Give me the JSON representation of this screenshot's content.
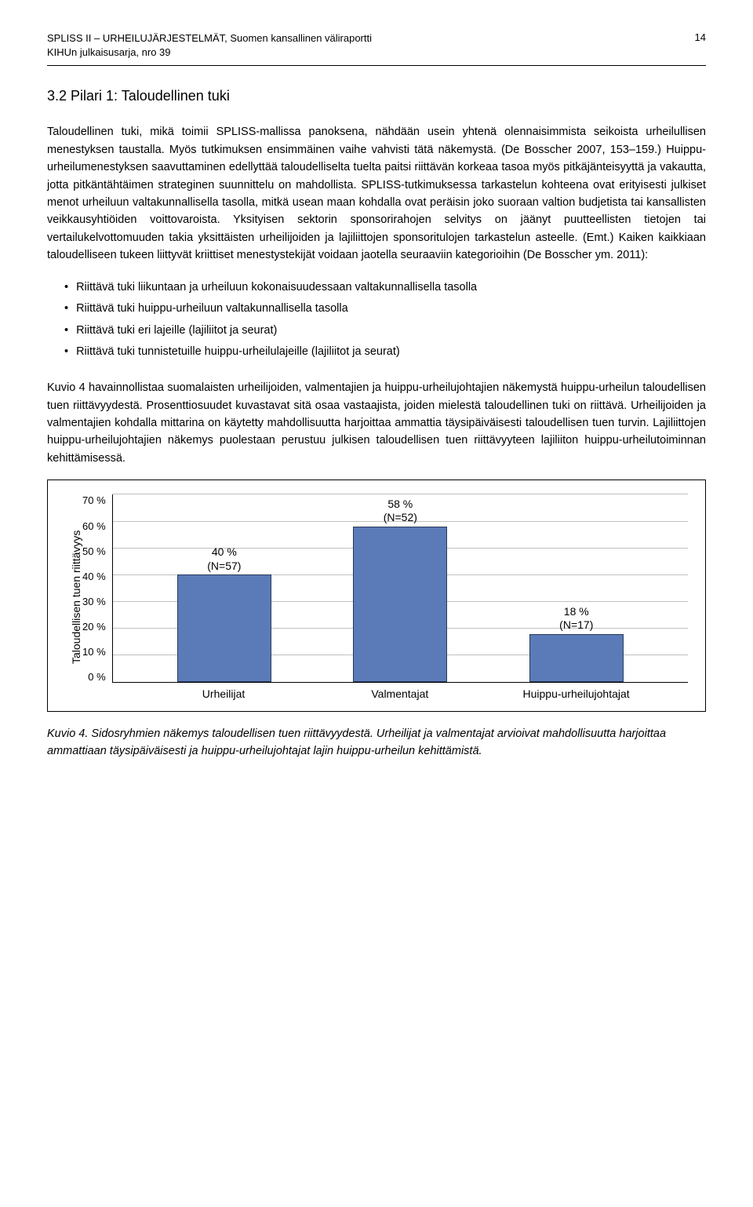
{
  "header": {
    "line1": "SPLISS II – URHEILUJÄRJESTELMÄT, Suomen kansallinen väliraportti",
    "line2": "KIHUn julkaisusarja, nro 39",
    "page": "14"
  },
  "heading": "3.2 Pilari 1: Taloudellinen tuki",
  "para1": "Taloudellinen tuki, mikä toimii SPLISS-mallissa panoksena, nähdään usein yhtenä olennaisimmista seikoista urheilullisen menestyksen taustalla. Myös tutkimuksen ensimmäinen vaihe vahvisti tätä näkemystä. (De Bosscher 2007, 153–159.) Huippu-urheilumenestyksen saavuttaminen edellyttää taloudelliselta tuelta paitsi riittävän korkeaa tasoa myös pitkäjänteisyyttä ja vakautta, jotta pitkäntähtäimen strateginen suunnittelu on mahdollista. SPLISS-tutkimuksessa tarkastelun kohteena ovat erityisesti julkiset menot urheiluun valtakunnallisella tasolla, mitkä usean maan kohdalla ovat peräisin joko suoraan valtion budjetista tai kansallisten veikkausyhtiöiden voittovaroista. Yksityisen sektorin sponsorirahojen selvitys on jäänyt puutteellisten tietojen tai vertailukelvottomuuden takia yksittäisten urheilijoiden ja lajiliittojen sponsoritulojen tarkastelun asteelle. (Emt.) Kaiken kaikkiaan taloudelliseen tukeen liittyvät kriittiset menestystekijät voidaan jaotella seuraaviin kategorioihin (De Bosscher ym. 2011):",
  "bullets": {
    "b1": "Riittävä tuki liikuntaan ja urheiluun kokonaisuudessaan valtakunnallisella tasolla",
    "b2": "Riittävä tuki huippu-urheiluun valtakunnallisella tasolla",
    "b3": "Riittävä tuki eri lajeille (lajiliitot ja seurat)",
    "b4": "Riittävä tuki tunnistetuille huippu-urheilulajeille (lajiliitot ja seurat)"
  },
  "para2": "Kuvio 4 havainnollistaa suomalaisten urheilijoiden, valmentajien ja huippu-urheilujohtajien näkemystä huippu-urheilun taloudellisen tuen riittävyydestä. Prosenttiosuudet kuvastavat sitä osaa vastaajista, joiden mielestä taloudellinen tuki on riittävä. Urheilijoiden ja valmentajien kohdalla mittarina on käytetty mahdollisuutta harjoittaa ammattia täysipäiväisesti taloudellisen tuen turvin. Lajiliittojen huippu-urheilujohtajien näkemys puolestaan perustuu julkisen taloudellisen tuen riittävyyteen lajiliiton huippu-urheilutoiminnan kehittämisessä.",
  "chart": {
    "ylabel": "Taloudellisen tuen riittävyys",
    "ymax": 70,
    "ytick_step": 10,
    "ticks": [
      "70 %",
      "60 %",
      "50 %",
      "40 %",
      "30 %",
      "20 %",
      "10 %",
      "0 %"
    ],
    "bar_color": "#5a7bb8",
    "bar_border": "#2a3a5a",
    "grid_color": "#c0c0c0",
    "bars": [
      {
        "category": "Urheilijat",
        "value": 40,
        "label_pct": "40 %",
        "label_n": "(N=57)"
      },
      {
        "category": "Valmentajat",
        "value": 58,
        "label_pct": "58 %",
        "label_n": "(N=52)"
      },
      {
        "category": "Huippu-urheilujohtajat",
        "value": 18,
        "label_pct": "18 %",
        "label_n": "(N=17)"
      }
    ]
  },
  "caption": "Kuvio 4. Sidosryhmien näkemys taloudellisen tuen riittävyydestä. Urheilijat ja valmentajat arvioivat mahdollisuutta harjoittaa ammattiaan täysipäiväisesti ja huippu-urheilujohtajat lajin huippu-urheilun kehittämistä."
}
